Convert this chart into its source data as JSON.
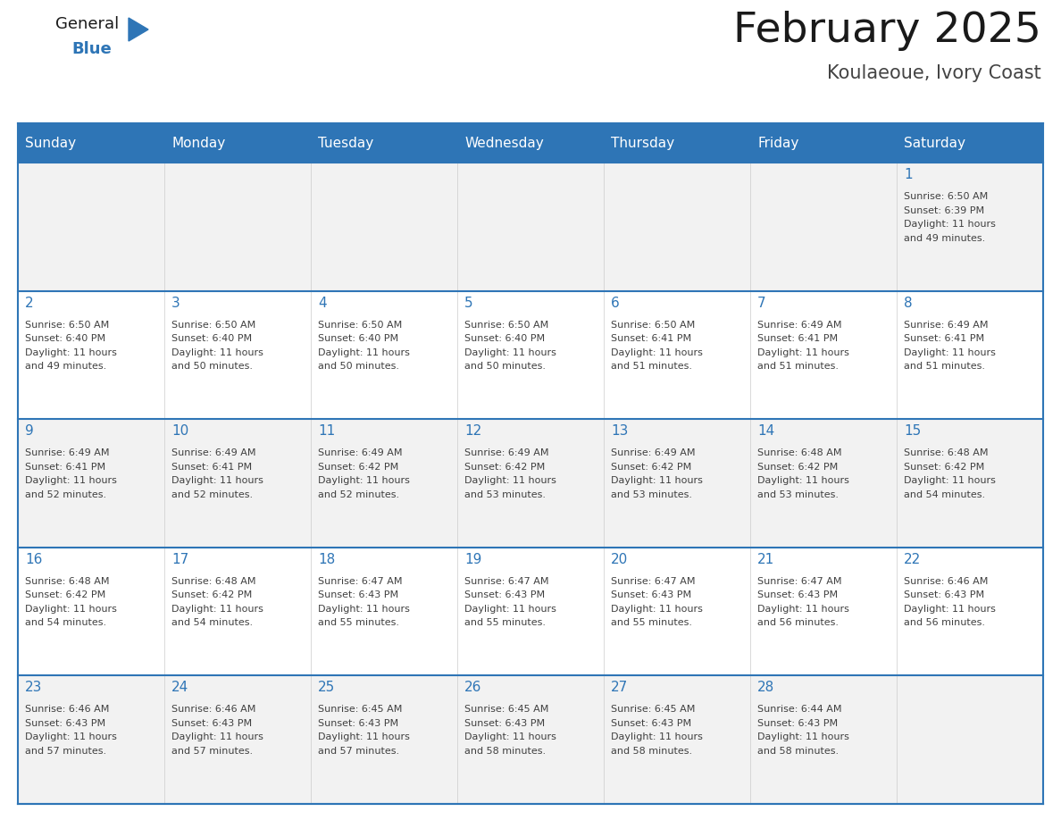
{
  "title": "February 2025",
  "subtitle": "Koulaeoue, Ivory Coast",
  "header_bg": "#2E75B6",
  "header_text_color": "#FFFFFF",
  "cell_bg_light": "#F2F2F2",
  "cell_bg_white": "#FFFFFF",
  "day_number_color": "#2E75B6",
  "text_color": "#404040",
  "line_color": "#2E75B6",
  "days_of_week": [
    "Sunday",
    "Monday",
    "Tuesday",
    "Wednesday",
    "Thursday",
    "Friday",
    "Saturday"
  ],
  "calendar_data": [
    [
      null,
      null,
      null,
      null,
      null,
      null,
      {
        "day": 1,
        "sunrise": "6:50 AM",
        "sunset": "6:39 PM",
        "daylight_hours": 11,
        "daylight_minutes": 49
      }
    ],
    [
      {
        "day": 2,
        "sunrise": "6:50 AM",
        "sunset": "6:40 PM",
        "daylight_hours": 11,
        "daylight_minutes": 49
      },
      {
        "day": 3,
        "sunrise": "6:50 AM",
        "sunset": "6:40 PM",
        "daylight_hours": 11,
        "daylight_minutes": 50
      },
      {
        "day": 4,
        "sunrise": "6:50 AM",
        "sunset": "6:40 PM",
        "daylight_hours": 11,
        "daylight_minutes": 50
      },
      {
        "day": 5,
        "sunrise": "6:50 AM",
        "sunset": "6:40 PM",
        "daylight_hours": 11,
        "daylight_minutes": 50
      },
      {
        "day": 6,
        "sunrise": "6:50 AM",
        "sunset": "6:41 PM",
        "daylight_hours": 11,
        "daylight_minutes": 51
      },
      {
        "day": 7,
        "sunrise": "6:49 AM",
        "sunset": "6:41 PM",
        "daylight_hours": 11,
        "daylight_minutes": 51
      },
      {
        "day": 8,
        "sunrise": "6:49 AM",
        "sunset": "6:41 PM",
        "daylight_hours": 11,
        "daylight_minutes": 51
      }
    ],
    [
      {
        "day": 9,
        "sunrise": "6:49 AM",
        "sunset": "6:41 PM",
        "daylight_hours": 11,
        "daylight_minutes": 52
      },
      {
        "day": 10,
        "sunrise": "6:49 AM",
        "sunset": "6:41 PM",
        "daylight_hours": 11,
        "daylight_minutes": 52
      },
      {
        "day": 11,
        "sunrise": "6:49 AM",
        "sunset": "6:42 PM",
        "daylight_hours": 11,
        "daylight_minutes": 52
      },
      {
        "day": 12,
        "sunrise": "6:49 AM",
        "sunset": "6:42 PM",
        "daylight_hours": 11,
        "daylight_minutes": 53
      },
      {
        "day": 13,
        "sunrise": "6:49 AM",
        "sunset": "6:42 PM",
        "daylight_hours": 11,
        "daylight_minutes": 53
      },
      {
        "day": 14,
        "sunrise": "6:48 AM",
        "sunset": "6:42 PM",
        "daylight_hours": 11,
        "daylight_minutes": 53
      },
      {
        "day": 15,
        "sunrise": "6:48 AM",
        "sunset": "6:42 PM",
        "daylight_hours": 11,
        "daylight_minutes": 54
      }
    ],
    [
      {
        "day": 16,
        "sunrise": "6:48 AM",
        "sunset": "6:42 PM",
        "daylight_hours": 11,
        "daylight_minutes": 54
      },
      {
        "day": 17,
        "sunrise": "6:48 AM",
        "sunset": "6:42 PM",
        "daylight_hours": 11,
        "daylight_minutes": 54
      },
      {
        "day": 18,
        "sunrise": "6:47 AM",
        "sunset": "6:43 PM",
        "daylight_hours": 11,
        "daylight_minutes": 55
      },
      {
        "day": 19,
        "sunrise": "6:47 AM",
        "sunset": "6:43 PM",
        "daylight_hours": 11,
        "daylight_minutes": 55
      },
      {
        "day": 20,
        "sunrise": "6:47 AM",
        "sunset": "6:43 PM",
        "daylight_hours": 11,
        "daylight_minutes": 55
      },
      {
        "day": 21,
        "sunrise": "6:47 AM",
        "sunset": "6:43 PM",
        "daylight_hours": 11,
        "daylight_minutes": 56
      },
      {
        "day": 22,
        "sunrise": "6:46 AM",
        "sunset": "6:43 PM",
        "daylight_hours": 11,
        "daylight_minutes": 56
      }
    ],
    [
      {
        "day": 23,
        "sunrise": "6:46 AM",
        "sunset": "6:43 PM",
        "daylight_hours": 11,
        "daylight_minutes": 57
      },
      {
        "day": 24,
        "sunrise": "6:46 AM",
        "sunset": "6:43 PM",
        "daylight_hours": 11,
        "daylight_minutes": 57
      },
      {
        "day": 25,
        "sunrise": "6:45 AM",
        "sunset": "6:43 PM",
        "daylight_hours": 11,
        "daylight_minutes": 57
      },
      {
        "day": 26,
        "sunrise": "6:45 AM",
        "sunset": "6:43 PM",
        "daylight_hours": 11,
        "daylight_minutes": 58
      },
      {
        "day": 27,
        "sunrise": "6:45 AM",
        "sunset": "6:43 PM",
        "daylight_hours": 11,
        "daylight_minutes": 58
      },
      {
        "day": 28,
        "sunrise": "6:44 AM",
        "sunset": "6:43 PM",
        "daylight_hours": 11,
        "daylight_minutes": 58
      },
      null
    ]
  ],
  "logo_general_color": "#1a1a1a",
  "logo_blue_color": "#2E75B6",
  "logo_triangle_color": "#2E75B6"
}
